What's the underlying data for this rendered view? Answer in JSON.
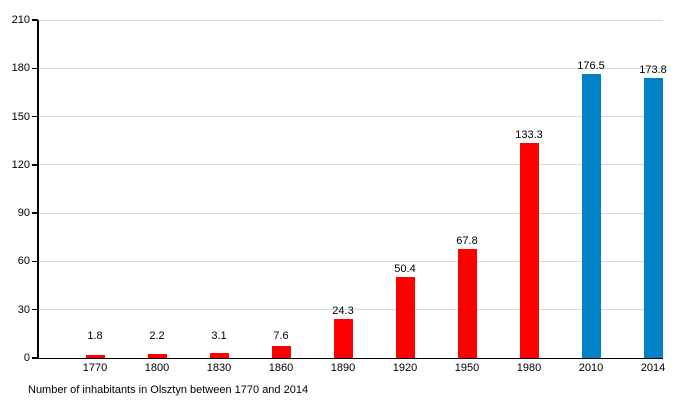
{
  "chart_data": {
    "type": "bar",
    "title": "",
    "caption": "Number of inhabitants in Olsztyn between 1770 and 2014",
    "categories": [
      "1770",
      "1800",
      "1830",
      "1860",
      "1890",
      "1920",
      "1950",
      "1980",
      "2010",
      "2014"
    ],
    "values": [
      1.8,
      2.2,
      3.1,
      7.6,
      24.3,
      50.4,
      67.8,
      133.3,
      176.5,
      173.8
    ],
    "value_labels": [
      "1.8",
      "2.2",
      "3.1",
      "7.6",
      "24.3",
      "50.4",
      "67.8",
      "133.3",
      "176.5",
      "173.8"
    ],
    "bar_colors": [
      "#ff0000",
      "#ff0000",
      "#ff0000",
      "#ff0000",
      "#ff0000",
      "#ff0000",
      "#ff0000",
      "#ff0000",
      "#0082c8",
      "#0082c8"
    ],
    "yticks": [
      0,
      30,
      60,
      90,
      120,
      150,
      180,
      210
    ],
    "ylim": [
      0,
      210
    ],
    "xlabel": "",
    "ylabel": "",
    "grid": "horizontal",
    "legend": "none",
    "colors": {
      "bar_red": "#ff0000",
      "bar_blue": "#0082c8",
      "gridline": "#d9d9d9",
      "axis": "#000000",
      "text": "#000000",
      "background": "#ffffff"
    }
  }
}
